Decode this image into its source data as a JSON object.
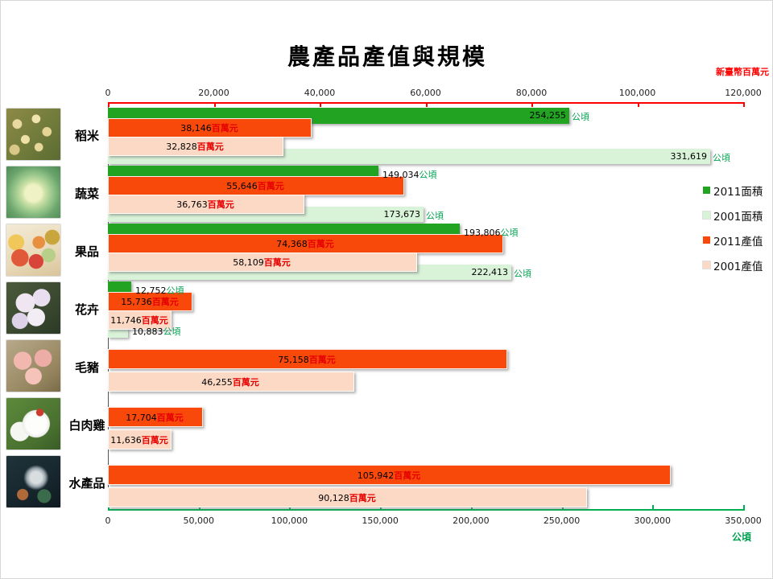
{
  "title": "農產品產值與規模",
  "axes": {
    "top": {
      "unit_label": "新臺幣百萬元",
      "max": 120000,
      "color": "#ff0000",
      "ticks": [
        "0",
        "20,000",
        "40,000",
        "60,000",
        "80,000",
        "100,000",
        "120,000"
      ]
    },
    "bottom": {
      "unit_label": "公頃",
      "max": 350000,
      "color": "#00b050",
      "ticks": [
        "0",
        "50,000",
        "100,000",
        "150,000",
        "200,000",
        "250,000",
        "300,000",
        "350,000"
      ]
    }
  },
  "legend": [
    {
      "label": "2011面積",
      "color": "#22a322"
    },
    {
      "label": "2001面積",
      "color": "#d9f3d9"
    },
    {
      "label": "2011產值",
      "color": "#f8490b"
    },
    {
      "label": "2001產值",
      "color": "#fbd9c5"
    }
  ],
  "chart_data": {
    "type": "bar",
    "orientation": "horizontal",
    "title": "農產品產值與規模",
    "top_axis": {
      "label": "新臺幣百萬元",
      "range": [
        0,
        120000
      ]
    },
    "bottom_axis": {
      "label": "公頃",
      "range": [
        0,
        350000
      ]
    },
    "categories": [
      {
        "name": "稻米",
        "photo": "rice-photo",
        "bars": [
          {
            "series": "2011面積",
            "value": 254255,
            "label": "254,255",
            "unit": "公頃",
            "axis": "bottom",
            "label_pos": "in"
          },
          {
            "series": "2011產值",
            "value": 38146,
            "label": "38,146",
            "unit": "百萬元",
            "axis": "top",
            "label_pos": "center"
          },
          {
            "series": "2001產值",
            "value": 32828,
            "label": "32,828",
            "unit": "百萬元",
            "axis": "top",
            "label_pos": "center"
          },
          {
            "series": "2001面積",
            "value": 331619,
            "label": "331,619",
            "unit": "公頃",
            "axis": "bottom",
            "label_pos": "in"
          }
        ]
      },
      {
        "name": "蔬菜",
        "photo": "cabbage-photo",
        "bars": [
          {
            "series": "2011面積",
            "value": 149034,
            "label": "149,034",
            "unit": "公頃",
            "axis": "bottom",
            "label_pos": "out"
          },
          {
            "series": "2011產值",
            "value": 55646,
            "label": "55,646",
            "unit": "百萬元",
            "axis": "top",
            "label_pos": "center"
          },
          {
            "series": "2001產值",
            "value": 36763,
            "label": "36,763",
            "unit": "百萬元",
            "axis": "top",
            "label_pos": "center"
          },
          {
            "series": "2001面積",
            "value": 173673,
            "label": "173,673",
            "unit": "公頃",
            "axis": "bottom",
            "label_pos": "in"
          }
        ]
      },
      {
        "name": "果品",
        "photo": "fruits-photo",
        "bars": [
          {
            "series": "2011面積",
            "value": 193806,
            "label": "193,806",
            "unit": "公頃",
            "axis": "bottom",
            "label_pos": "out"
          },
          {
            "series": "2011產值",
            "value": 74368,
            "label": "74,368",
            "unit": "百萬元",
            "axis": "top",
            "label_pos": "center"
          },
          {
            "series": "2001產值",
            "value": 58109,
            "label": "58,109",
            "unit": "百萬元",
            "axis": "top",
            "label_pos": "center"
          },
          {
            "series": "2001面積",
            "value": 222413,
            "label": "222,413",
            "unit": "公頃",
            "axis": "bottom",
            "label_pos": "in"
          }
        ]
      },
      {
        "name": "花卉",
        "photo": "orchid-photo",
        "bars": [
          {
            "series": "2011面積",
            "value": 12752,
            "label": "12,752",
            "unit": "公頃",
            "axis": "bottom",
            "label_pos": "out"
          },
          {
            "series": "2011產值",
            "value": 15736,
            "label": "15,736",
            "unit": "百萬元",
            "axis": "top",
            "label_pos": "center"
          },
          {
            "series": "2001產值",
            "value": 11746,
            "label": "11,746",
            "unit": "百萬元",
            "axis": "top",
            "label_pos": "center"
          },
          {
            "series": "2001面積",
            "value": 10883,
            "label": "10,883",
            "unit": "公頃",
            "axis": "bottom",
            "label_pos": "out"
          }
        ]
      },
      {
        "name": "毛豬",
        "photo": "pigs-photo",
        "bars": [
          {
            "series": "2011產值",
            "value": 75158,
            "label": "75,158",
            "unit": "百萬元",
            "axis": "top",
            "label_pos": "center"
          },
          {
            "series": "2001產值",
            "value": 46255,
            "label": "46,255",
            "unit": "百萬元",
            "axis": "top",
            "label_pos": "center"
          }
        ]
      },
      {
        "name": "白肉雞",
        "photo": "chicken-photo",
        "bars": [
          {
            "series": "2011產值",
            "value": 17704,
            "label": "17,704",
            "unit": "百萬元",
            "axis": "top",
            "label_pos": "center"
          },
          {
            "series": "2001產值",
            "value": 11636,
            "label": "11,636",
            "unit": "百萬元",
            "axis": "top",
            "label_pos": "center"
          }
        ]
      },
      {
        "name": "水產品",
        "photo": "fish-photo",
        "bars": [
          {
            "series": "2011產值",
            "value": 105942,
            "label": "105,942",
            "unit": "百萬元",
            "axis": "top",
            "label_pos": "center"
          },
          {
            "series": "2001產值",
            "value": 90128,
            "label": "90,128",
            "unit": "百萬元",
            "axis": "top",
            "label_pos": "center"
          }
        ]
      }
    ]
  }
}
